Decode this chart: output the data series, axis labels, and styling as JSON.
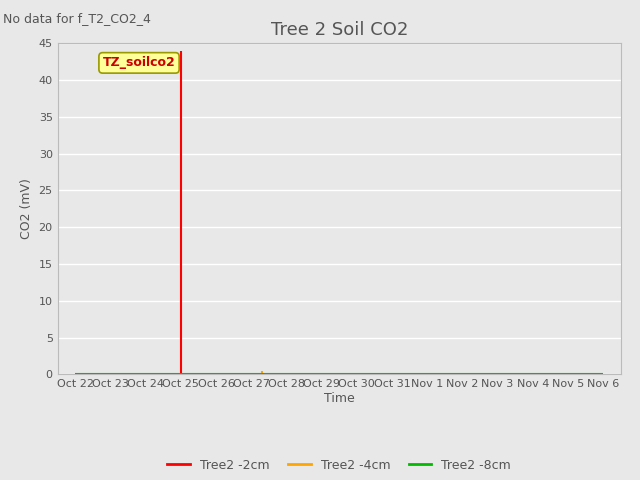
{
  "title": "Tree 2 Soil CO2",
  "no_data_text": "No data for f_T2_CO2_4",
  "ylabel": "CO2 (mV)",
  "xlabel": "Time",
  "ylim": [
    0,
    45
  ],
  "bg_color": "#e8e8e8",
  "plot_bg_color": "#e8e8e8",
  "grid_color": "#ffffff",
  "annotation_box_text": "TZ_soilco2",
  "annotation_box_color": "#ffff99",
  "annotation_box_edge": "#999900",
  "series": [
    {
      "label": "Tree2 -2cm",
      "color": "#ff0000",
      "data_x": [
        3,
        3
      ],
      "data_y": [
        0,
        44
      ]
    },
    {
      "label": "Tree2 -4cm",
      "color": "#ffa500",
      "data_x": [
        5.3,
        5.3
      ],
      "data_y": [
        0,
        0.5
      ]
    },
    {
      "label": "Tree2 -8cm",
      "color": "#00bb00",
      "data_x": [
        0,
        15
      ],
      "data_y": [
        0,
        0
      ]
    }
  ],
  "x_tick_labels": [
    "Oct 22",
    "Oct 23",
    "Oct 24",
    "Oct 25",
    "Oct 26",
    "Oct 27",
    "Oct 28",
    "Oct 29",
    "Oct 30",
    "Oct 31",
    "Nov 1",
    "Nov 2",
    "Nov 3",
    "Nov 4",
    "Nov 5",
    "Nov 6"
  ],
  "x_tick_positions": [
    0,
    1,
    2,
    3,
    4,
    5,
    6,
    7,
    8,
    9,
    10,
    11,
    12,
    13,
    14,
    15
  ],
  "xlim": [
    -0.5,
    15.5
  ],
  "yticks": [
    0,
    5,
    10,
    15,
    20,
    25,
    30,
    35,
    40,
    45
  ],
  "title_fontsize": 13,
  "label_fontsize": 9,
  "tick_fontsize": 8,
  "legend_fontsize": 9,
  "nodata_fontsize": 9
}
